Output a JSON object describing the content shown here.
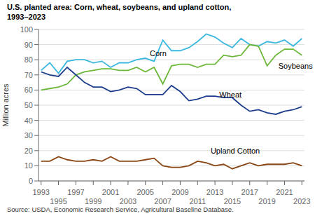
{
  "chart_data": {
    "type": "line",
    "title": "U.S. planted area: Corn, wheat, soybeans, and upland cotton,\n1993–2023",
    "y_label": "Million acres",
    "source": "Source: USDA, Economic Research Service, Agricultural Baseline Database.",
    "x": [
      1993,
      1994,
      1995,
      1996,
      1997,
      1998,
      1999,
      2000,
      2001,
      2002,
      2003,
      2004,
      2005,
      2006,
      2007,
      2008,
      2009,
      2010,
      2011,
      2012,
      2013,
      2014,
      2015,
      2016,
      2017,
      2018,
      2019,
      2020,
      2021,
      2022,
      2023
    ],
    "series": [
      {
        "name": "Corn",
        "color": "#3CB8E0",
        "values": [
          73,
          78,
          71,
          79,
          80,
          80,
          78,
          79,
          75,
          78,
          78,
          80,
          81,
          79,
          93,
          86,
          86,
          88,
          92,
          97,
          95,
          91,
          88,
          94,
          90,
          89,
          92,
          91,
          93,
          89,
          94
        ]
      },
      {
        "name": "Soybeans",
        "color": "#6DB83A",
        "values": [
          60,
          61,
          62,
          64,
          70,
          72,
          73,
          74,
          74,
          73,
          73,
          75,
          72,
          75,
          64,
          76,
          77,
          77,
          75,
          77,
          77,
          83,
          82,
          83,
          90,
          89,
          76,
          83,
          87,
          87,
          83
        ]
      },
      {
        "name": "Wheat",
        "color": "#1C3C8C",
        "values": [
          72,
          70,
          69,
          75,
          70,
          65,
          62,
          62,
          59,
          60,
          62,
          61,
          57,
          57,
          57,
          63,
          59,
          53,
          54,
          56,
          56,
          55,
          55,
          50,
          46,
          47,
          45,
          44,
          46,
          47,
          49
        ]
      },
      {
        "name": "Upland Cotton",
        "color": "#8B4513",
        "values": [
          13,
          13,
          16,
          14,
          13,
          13,
          14,
          13,
          16,
          13,
          13,
          13,
          14,
          15,
          10,
          9,
          9,
          10,
          13,
          12,
          10,
          11,
          8,
          10,
          12,
          10,
          11,
          11,
          11,
          12,
          10
        ]
      }
    ],
    "annotations": [
      {
        "text": "Corn",
        "x": 2005.5,
        "y": 84
      },
      {
        "text": "Soybeans",
        "x": 2020.3,
        "y": 76
      },
      {
        "text": "Wheat",
        "x": 2013.5,
        "y": 57
      },
      {
        "text": "Upland Cotton",
        "x": 2012.5,
        "y": 20
      }
    ],
    "xlim": [
      1992.7,
      2023.3
    ],
    "xticks": [
      1993,
      1995,
      1997,
      1999,
      2001,
      2003,
      2005,
      2007,
      2009,
      2011,
      2013,
      2015,
      2017,
      2019,
      2021,
      2023
    ],
    "ylim": [
      0,
      100
    ],
    "yticks": [
      0,
      10,
      20,
      30,
      40,
      50,
      60,
      70,
      80,
      90,
      100
    ],
    "grid": true
  }
}
